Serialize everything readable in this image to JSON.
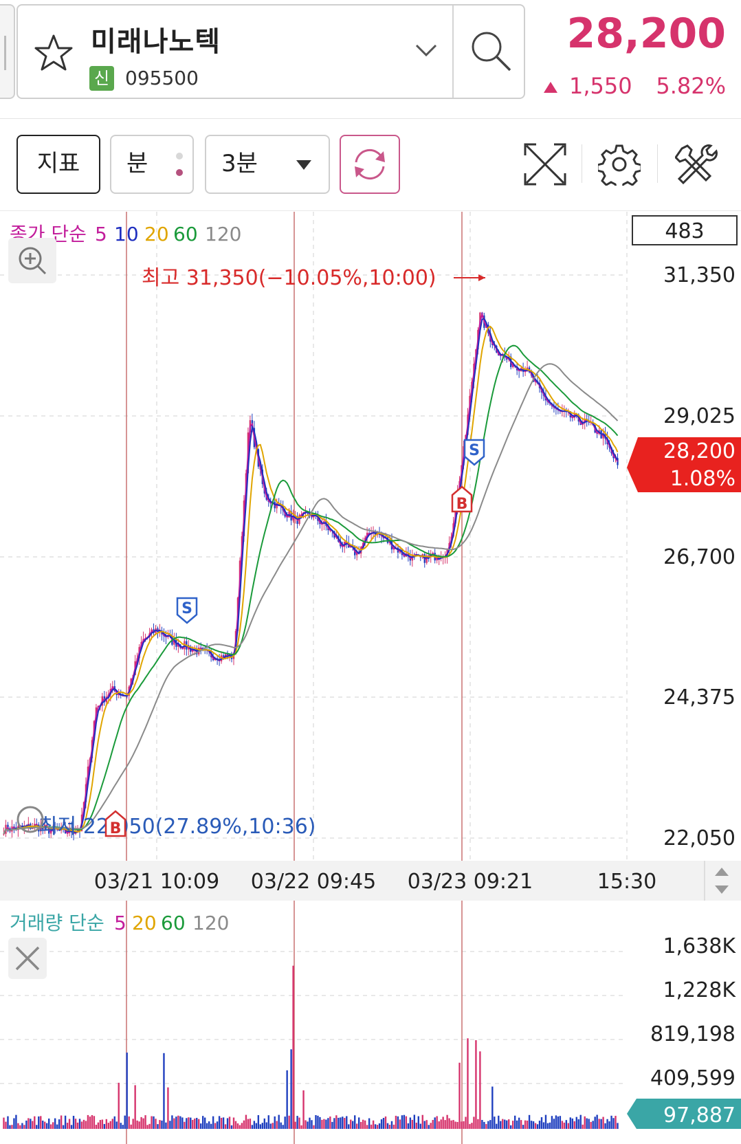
{
  "header": {
    "stock_name": "미래나노텍",
    "badge": "신",
    "code": "095500",
    "price": "28,200",
    "change_abs": "1,550",
    "change_pct": "5.82%"
  },
  "toolbar": {
    "indicator_label": "지표",
    "period_label": "분",
    "interval_label": "3분"
  },
  "icons": {
    "favorite": "star-icon",
    "dropdown": "chevron-down-icon",
    "search": "search-icon",
    "refresh": "refresh-icon",
    "expand": "expand-icon",
    "settings": "gear-icon",
    "tools": "tools-icon",
    "zoom": "zoom-in-icon",
    "close": "close-icon"
  },
  "colors": {
    "up": "#d6336c",
    "down": "#1f3fbf",
    "ma5": "#c21d9b",
    "ma10": "#1f2fbf",
    "ma20": "#e0a500",
    "ma60": "#1a9a3a",
    "ma120": "#8a8a8a",
    "volume_accent": "#3aa6a6"
  },
  "chart_data": [
    {
      "type": "line",
      "title": "",
      "legend": {
        "prefix": "종가 단순",
        "periods": [
          "5",
          "10",
          "20",
          "60",
          "120"
        ]
      },
      "y_ticks": [
        "31,350",
        "29,025",
        "26,700",
        "24,375",
        "22,050"
      ],
      "y_range": [
        22050,
        31350
      ],
      "x_labels": [
        "03/21 10:09",
        "03/22 09:45",
        "03/23 09:21",
        "15:30"
      ],
      "crosshair_value": "483",
      "current_price": "28,200",
      "current_pct": "1.08%",
      "high_label": "최고 31,350(−10.05%,10:00)",
      "low_label": "최저 22,050(27.89%,10:36)",
      "markers": [
        "B",
        "S",
        "B",
        "S"
      ],
      "series": [
        {
          "name": "5",
          "values": [
            22200,
            22210,
            22250,
            22180,
            22150,
            22200,
            24200,
            24500,
            24400,
            25300,
            25500,
            25300,
            25200,
            25100,
            25050,
            25050,
            29000,
            27700,
            27500,
            27300,
            27400,
            27200,
            26900,
            26750,
            27150,
            26950,
            26750,
            26650,
            26700,
            26800,
            28500,
            30700,
            30150,
            29900,
            29800,
            29400,
            29100,
            29000,
            28900,
            28700,
            28200
          ]
        }
      ]
    },
    {
      "type": "bar",
      "title": "",
      "legend": {
        "prefix": "거래량 단순",
        "periods": [
          "5",
          "20",
          "60",
          "120"
        ]
      },
      "y_ticks": [
        "1,638K",
        "1,228K",
        "819,198",
        "409,599"
      ],
      "y_range": [
        0,
        1638000
      ],
      "current_value": "97,887"
    }
  ]
}
